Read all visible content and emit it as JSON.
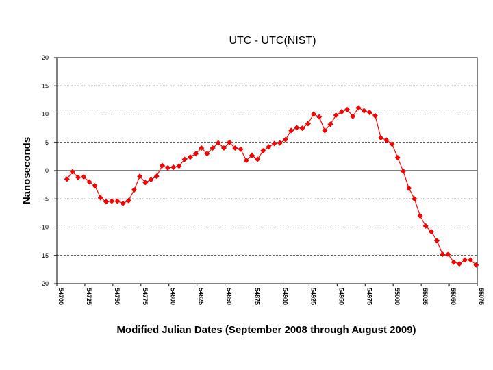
{
  "chart_data": {
    "type": "line",
    "title": "UTC - UTC(NIST)",
    "xlabel": "Modified Julian Dates (September 2008 through August 2009)",
    "ylabel": "Nanoseconds",
    "xlim": [
      54700,
      55075
    ],
    "ylim": [
      -20,
      20
    ],
    "x_ticks": [
      54700,
      54725,
      54750,
      54775,
      54800,
      54825,
      54850,
      54875,
      54900,
      54925,
      54950,
      54975,
      55000,
      55025,
      55050,
      55075
    ],
    "x_tick_labels": [
      "54700",
      "54725",
      "54750",
      "54775",
      "54800",
      "54825",
      "54850",
      "54875",
      "54900",
      "54925",
      "54950",
      "54975",
      "55000",
      "55025",
      "55050",
      "55075"
    ],
    "y_ticks": [
      -20,
      -15,
      -10,
      -5,
      0,
      5,
      10,
      15,
      20
    ],
    "y_tick_labels": [
      "-20",
      "-15",
      "-10",
      "-5",
      "0",
      "5",
      "10",
      "15",
      "20"
    ],
    "grid": "horizontal dashed",
    "legend": "none",
    "series": [
      {
        "color": "#ff0000",
        "marker": "diamond",
        "x": [
          54709,
          54714,
          54719,
          54724,
          54729,
          54734,
          54739,
          54744,
          54749,
          54754,
          54759,
          54764,
          54769,
          54774,
          54779,
          54784,
          54789,
          54794,
          54799,
          54804,
          54809,
          54814,
          54819,
          54824,
          54829,
          54834,
          54839,
          54844,
          54849,
          54854,
          54859,
          54864,
          54869,
          54874,
          54879,
          54884,
          54889,
          54894,
          54899,
          54904,
          54909,
          54914,
          54919,
          54924,
          54929,
          54934,
          54939,
          54944,
          54949,
          54954,
          54959,
          54964,
          54969,
          54974,
          54979,
          54984,
          54989,
          54994,
          54999,
          55004,
          55009,
          55014,
          55019,
          55024,
          55029,
          55034,
          55039,
          55044,
          55049,
          55054,
          55059,
          55064,
          55069,
          55074
        ],
        "y": [
          -1.5,
          -0.2,
          -1.2,
          -1.1,
          -2.0,
          -2.7,
          -4.8,
          -5.5,
          -5.4,
          -5.4,
          -5.8,
          -5.3,
          -3.4,
          -1.0,
          -2.1,
          -1.6,
          -1.0,
          0.9,
          0.5,
          0.6,
          0.8,
          2.0,
          2.4,
          3.0,
          4.0,
          3.0,
          4.0,
          4.9,
          4.0,
          5.0,
          4.0,
          3.8,
          1.8,
          2.7,
          2.0,
          3.5,
          4.2,
          4.8,
          4.9,
          5.5,
          7.1,
          7.6,
          7.5,
          8.3,
          10.0,
          9.5,
          7.1,
          8.2,
          9.8,
          10.4,
          10.8,
          9.6,
          11.1,
          10.6,
          10.3,
          9.7,
          5.8,
          5.4,
          4.7,
          2.3,
          -0.1,
          -3.1,
          -5.0,
          -8.0,
          -9.8,
          -10.8,
          -12.4,
          -14.8,
          -14.8,
          -16.2,
          -16.5,
          -15.8,
          -15.8,
          -16.7
        ]
      }
    ]
  }
}
